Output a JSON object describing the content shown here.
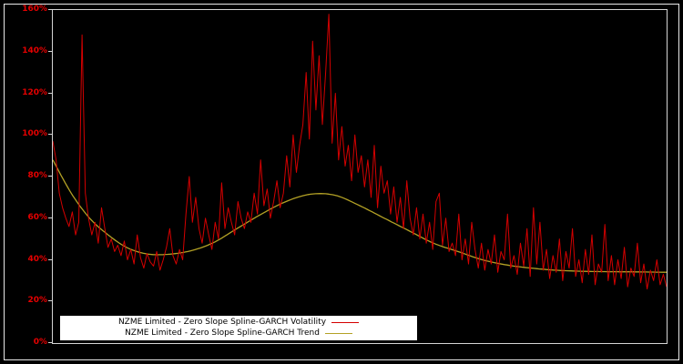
{
  "figure": {
    "background": "#000000",
    "outer_border_color": "#e9e9e9",
    "axis_box_color": "#d4d4d4",
    "tick_label_color": "#e60000"
  },
  "y_axis": {
    "tick_labels": [
      "0%",
      "20%",
      "40%",
      "60%",
      "80%",
      "100%",
      "120%",
      "140%",
      "160%"
    ],
    "tick_values": [
      0,
      20,
      40,
      60,
      80,
      100,
      120,
      140,
      160
    ]
  },
  "chart_data": {
    "type": "line",
    "title": "",
    "xlabel": "",
    "ylabel": "",
    "ylim": [
      0,
      160
    ],
    "y_tick_step": 20,
    "y_unit": "percent",
    "grid": false,
    "background": "black",
    "legend_position": "bottom-center-inside",
    "series": [
      {
        "name": "NZME Limited - Zero Slope Spline-GARCH Volatility",
        "color": "#d40000",
        "style": "jagged",
        "values": [
          97,
          88,
          72,
          65,
          60,
          56,
          63,
          52,
          58,
          148,
          72,
          60,
          52,
          58,
          48,
          65,
          55,
          46,
          50,
          44,
          47,
          42,
          49,
          40,
          45,
          38,
          52,
          41,
          36,
          43,
          39,
          37,
          44,
          35,
          40,
          46,
          55,
          42,
          38,
          45,
          40,
          62,
          80,
          58,
          70,
          55,
          48,
          60,
          52,
          45,
          58,
          50,
          77,
          55,
          65,
          58,
          52,
          68,
          60,
          55,
          63,
          58,
          72,
          62,
          88,
          66,
          74,
          60,
          68,
          78,
          65,
          72,
          90,
          75,
          100,
          82,
          95,
          105,
          130,
          98,
          145,
          112,
          138,
          105,
          130,
          158,
          96,
          120,
          88,
          104,
          85,
          95,
          78,
          100,
          82,
          90,
          75,
          88,
          70,
          95,
          65,
          85,
          72,
          78,
          62,
          75,
          58,
          70,
          55,
          78,
          60,
          52,
          65,
          50,
          62,
          48,
          58,
          45,
          68,
          72,
          47,
          60,
          44,
          48,
          42,
          62,
          40,
          50,
          38,
          58,
          45,
          36,
          48,
          35,
          45,
          38,
          52,
          34,
          44,
          40,
          62,
          36,
          42,
          33,
          48,
          37,
          55,
          32,
          65,
          38,
          58,
          35,
          45,
          31,
          42,
          34,
          50,
          30,
          44,
          36,
          55,
          32,
          40,
          29,
          45,
          33,
          52,
          28,
          38,
          34,
          57,
          30,
          42,
          28,
          40,
          31,
          46,
          27,
          36,
          32,
          48,
          29,
          38,
          26,
          35,
          30,
          40,
          28,
          33,
          27
        ]
      },
      {
        "name": "NZME Limited - Zero Slope Spline-GARCH Trend",
        "color": "#b3a125",
        "style": "smooth",
        "anchors": [
          [
            0,
            88
          ],
          [
            0.03,
            72
          ],
          [
            0.06,
            60
          ],
          [
            0.09,
            52
          ],
          [
            0.12,
            46
          ],
          [
            0.15,
            43
          ],
          [
            0.18,
            42.5
          ],
          [
            0.22,
            44
          ],
          [
            0.26,
            48
          ],
          [
            0.3,
            55
          ],
          [
            0.34,
            62
          ],
          [
            0.38,
            68
          ],
          [
            0.42,
            71.5
          ],
          [
            0.46,
            71
          ],
          [
            0.5,
            66
          ],
          [
            0.54,
            60
          ],
          [
            0.58,
            54
          ],
          [
            0.62,
            48
          ],
          [
            0.66,
            44
          ],
          [
            0.7,
            40
          ],
          [
            0.74,
            37.5
          ],
          [
            0.78,
            36
          ],
          [
            0.82,
            35
          ],
          [
            0.86,
            34.5
          ],
          [
            0.9,
            34.3
          ],
          [
            0.95,
            34.2
          ],
          [
            1.0,
            34
          ]
        ]
      }
    ]
  }
}
